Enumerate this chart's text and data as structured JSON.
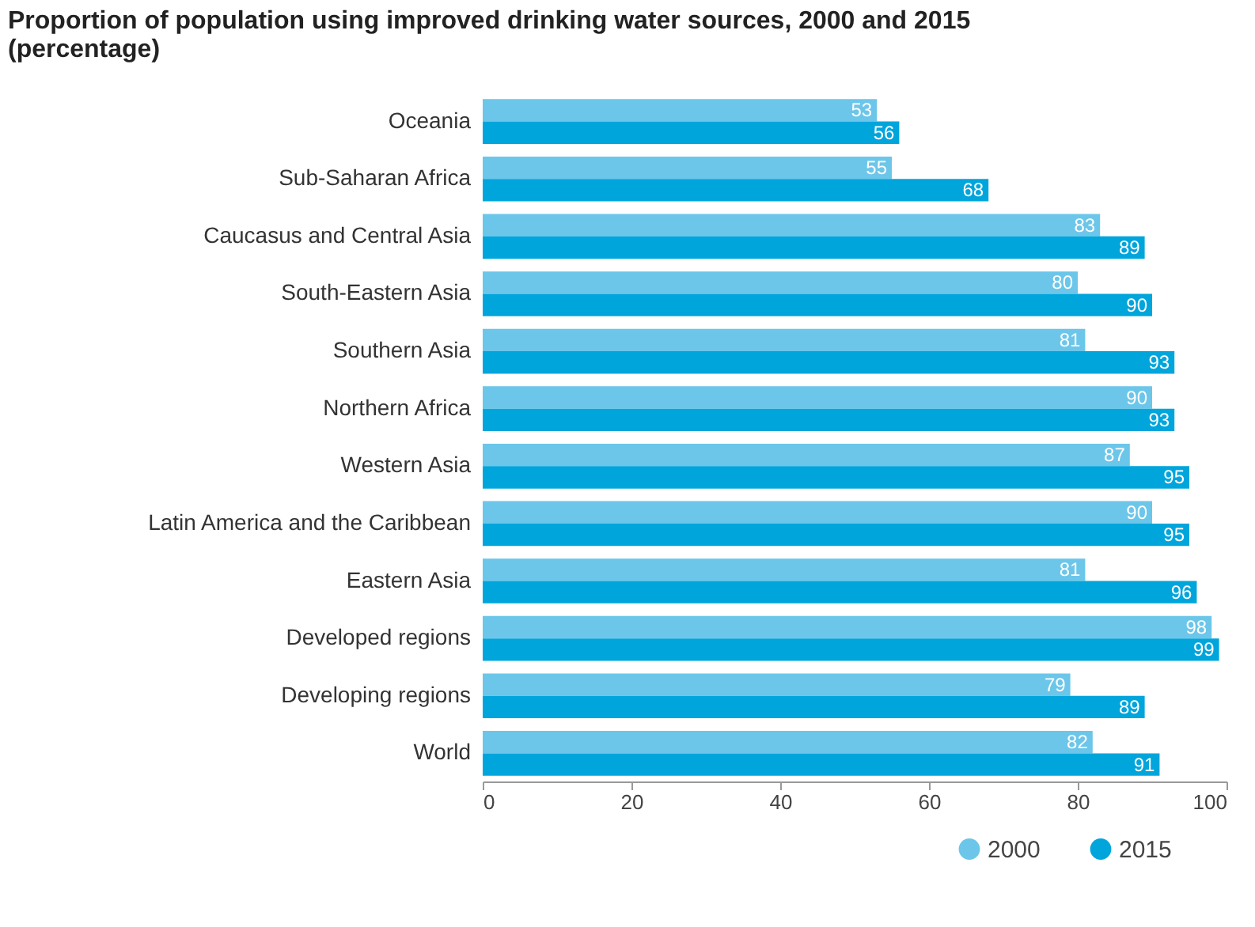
{
  "chart_data": {
    "type": "bar",
    "orientation": "horizontal",
    "title": "Proportion of population using improved drinking water sources, 2000 and 2015 (percentage)",
    "categories": [
      "Oceania",
      "Sub-Saharan Africa",
      "Caucasus and Central Asia",
      "South-Eastern Asia",
      "Southern Asia",
      "Northern Africa",
      "Western Asia",
      "Latin America and the Caribbean",
      "Eastern Asia",
      "Developed regions",
      "Developing regions",
      "World"
    ],
    "series": [
      {
        "name": "2000",
        "color": "#6cc6ea",
        "values": [
          53,
          55,
          83,
          80,
          81,
          90,
          87,
          90,
          81,
          98,
          79,
          82
        ]
      },
      {
        "name": "2015",
        "color": "#00a5dc",
        "values": [
          56,
          68,
          89,
          90,
          93,
          93,
          95,
          95,
          96,
          99,
          89,
          91
        ]
      }
    ],
    "xlim": [
      0,
      100
    ],
    "xticks": [
      0,
      20,
      40,
      60,
      80,
      100
    ],
    "grid": false,
    "legend": "bottom right",
    "data_labels": true
  }
}
